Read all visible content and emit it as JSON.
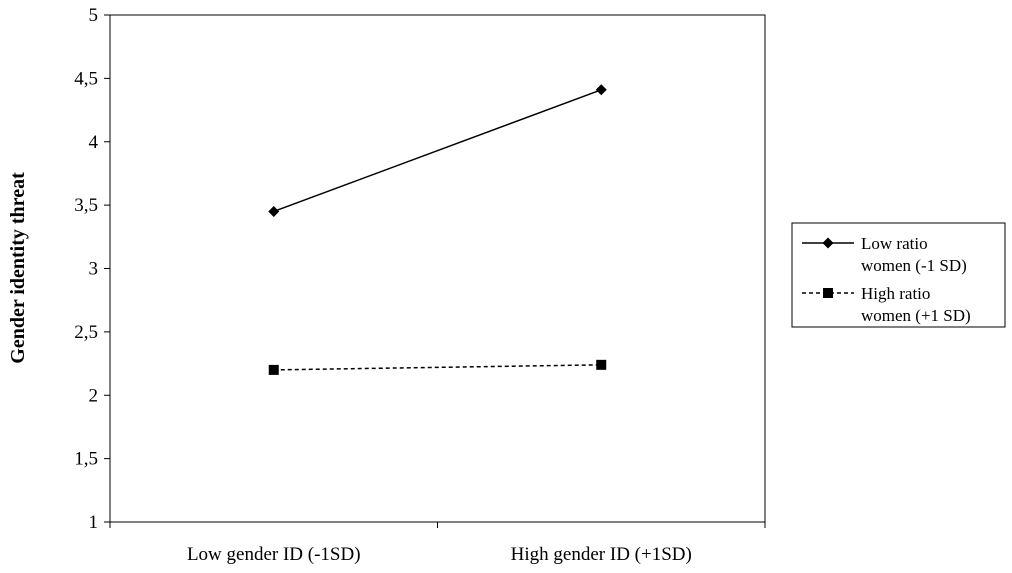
{
  "chart_data": {
    "type": "line",
    "title": "",
    "xlabel": "",
    "ylabel": "Gender identity threat",
    "categories": [
      "Low gender ID (-1SD)",
      "High gender ID (+1SD)"
    ],
    "ylim": [
      1,
      5
    ],
    "yticks": [
      "1",
      "1,5",
      "2",
      "2,5",
      "3",
      "3,5",
      "4",
      "4,5",
      "5"
    ],
    "grid": false,
    "legend_position": "right",
    "series": [
      {
        "name_lines": [
          "Low ratio",
          "women (-1 SD)"
        ],
        "values": [
          3.45,
          4.41
        ],
        "marker": "diamond",
        "line_style": "solid",
        "color": "#000000"
      },
      {
        "name_lines": [
          "High ratio",
          "women (+1 SD)"
        ],
        "values": [
          2.2,
          2.24
        ],
        "marker": "square",
        "line_style": "dashed",
        "color": "#000000"
      }
    ]
  }
}
